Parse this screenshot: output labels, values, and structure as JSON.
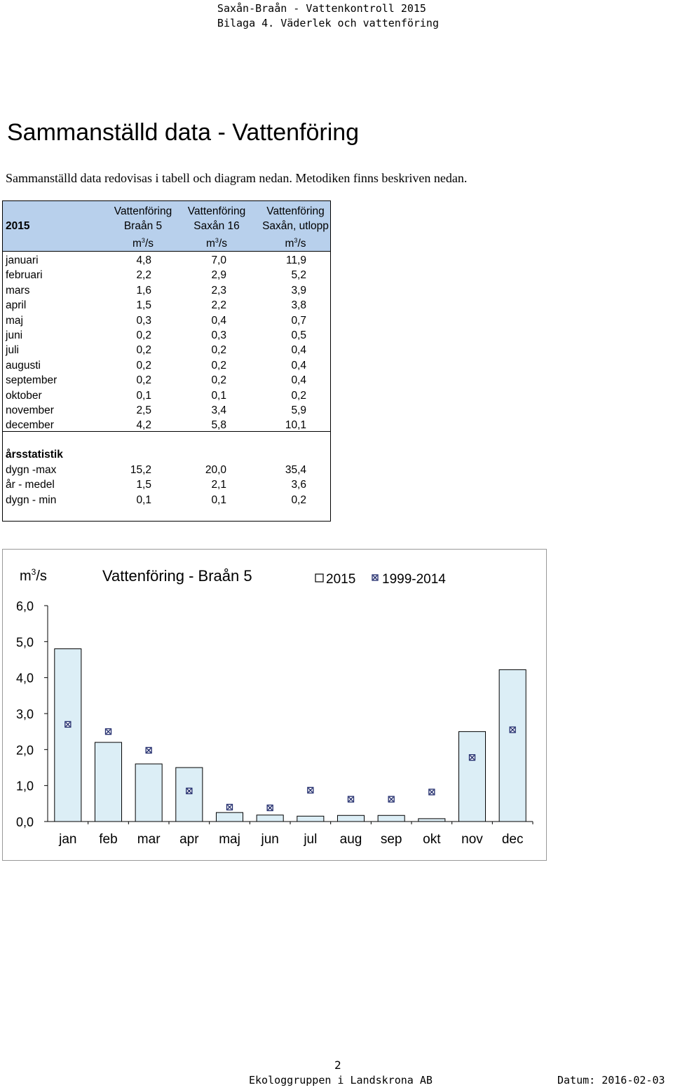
{
  "header": {
    "line1": "Saxån-Braån - Vattenkontroll 2015",
    "line2": "Bilaga 4. Väderlek och vattenföring"
  },
  "title": "Sammanställd data - Vattenföring",
  "intro": "Sammanställd data redovisas i tabell och diagram nedan. Metodiken finns beskriven nedan.",
  "table": {
    "year": "2015",
    "columns": [
      {
        "line1": "Vattenföring",
        "line2": "Braån 5",
        "unit": "m",
        "unit_sup": "3",
        "unit_tail": "/s"
      },
      {
        "line1": "Vattenföring",
        "line2": "Saxån 16",
        "unit": "m",
        "unit_sup": "3",
        "unit_tail": "/s"
      },
      {
        "line1": "Vattenföring",
        "line2": "Saxån, utlopp",
        "unit": "m",
        "unit_sup": "3",
        "unit_tail": "/s"
      }
    ],
    "rows": [
      {
        "label": "januari",
        "v1": "4,8",
        "v2": "7,0",
        "v3": "11,9"
      },
      {
        "label": "februari",
        "v1": "2,2",
        "v2": "2,9",
        "v3": "5,2"
      },
      {
        "label": "mars",
        "v1": "1,6",
        "v2": "2,3",
        "v3": "3,9"
      },
      {
        "label": "april",
        "v1": "1,5",
        "v2": "2,2",
        "v3": "3,8"
      },
      {
        "label": "maj",
        "v1": "0,3",
        "v2": "0,4",
        "v3": "0,7"
      },
      {
        "label": "juni",
        "v1": "0,2",
        "v2": "0,3",
        "v3": "0,5"
      },
      {
        "label": "juli",
        "v1": "0,2",
        "v2": "0,2",
        "v3": "0,4"
      },
      {
        "label": "augusti",
        "v1": "0,2",
        "v2": "0,2",
        "v3": "0,4"
      },
      {
        "label": "september",
        "v1": "0,2",
        "v2": "0,2",
        "v3": "0,4"
      },
      {
        "label": "oktober",
        "v1": "0,1",
        "v2": "0,1",
        "v3": "0,2"
      },
      {
        "label": "november",
        "v1": "2,5",
        "v2": "3,4",
        "v3": "5,9"
      },
      {
        "label": "december",
        "v1": "4,2",
        "v2": "5,8",
        "v3": "10,1"
      }
    ],
    "stats_heading": "årsstatistik",
    "stats": [
      {
        "label": "dygn -max",
        "v1": "15,2",
        "v2": "20,0",
        "v3": "35,4"
      },
      {
        "label": "år - medel",
        "v1": "1,5",
        "v2": "2,1",
        "v3": "3,6"
      },
      {
        "label": "dygn - min",
        "v1": "0,1",
        "v2": "0,1",
        "v3": "0,2"
      }
    ]
  },
  "chart_data": {
    "type": "bar",
    "title": "Vattenföring - Braån 5",
    "ylabel": "m",
    "ylabel_sup": "3",
    "ylabel_tail": "/s",
    "ylim": [
      0,
      6
    ],
    "yticks": [
      "0,0",
      "1,0",
      "2,0",
      "3,0",
      "4,0",
      "5,0",
      "6,0"
    ],
    "categories": [
      "jan",
      "feb",
      "mar",
      "apr",
      "maj",
      "jun",
      "jul",
      "aug",
      "sep",
      "okt",
      "nov",
      "dec"
    ],
    "legend_position": "top-right",
    "series": [
      {
        "name": "2015",
        "kind": "bar",
        "color": "#dceef6",
        "values": [
          4.8,
          2.2,
          1.6,
          1.5,
          0.25,
          0.18,
          0.15,
          0.17,
          0.17,
          0.08,
          2.5,
          4.22
        ]
      },
      {
        "name": "1999-2014",
        "kind": "marker",
        "color": "#1f2a6b",
        "values": [
          2.7,
          2.5,
          1.98,
          0.85,
          0.4,
          0.38,
          0.87,
          0.62,
          0.62,
          0.82,
          1.78,
          2.55
        ]
      }
    ],
    "grid": false
  },
  "footer": {
    "page": "2",
    "company": "Ekologgruppen i Landskrona AB",
    "date": "Datum: 2016-02-03"
  }
}
